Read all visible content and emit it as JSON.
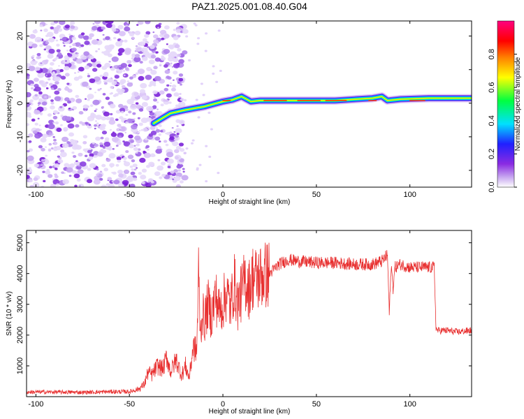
{
  "title": "PAZ1.2025.001.08.40.G04",
  "chart_data": [
    {
      "type": "heatmap",
      "xlabel": "Height of straight line (km)",
      "ylabel": "Frequency (Hz)",
      "xlim": [
        -105,
        133
      ],
      "ylim": [
        -25,
        24.5
      ],
      "xticks": [
        "-100",
        "-50",
        "0",
        "50",
        "100"
      ],
      "yticks": [
        "-20",
        "-10",
        "0",
        "10",
        "20"
      ],
      "colorbar": {
        "label": "Normalized spectral amplitude",
        "range": [
          0,
          1
        ],
        "ticks": [
          "0.0",
          "0.2",
          "0.4",
          "0.6",
          "0.8"
        ],
        "colors": [
          "#ffffff",
          "#c8a8f0",
          "#8a2be2",
          "#2020ff",
          "#00e0ff",
          "#00ff40",
          "#ffff00",
          "#ff8000",
          "#ff0000",
          "#ff0080"
        ]
      },
      "ridge": {
        "description_points_x": [
          -37,
          -28,
          -20,
          -10,
          0,
          5,
          10,
          15,
          20,
          40,
          60,
          80,
          85,
          88,
          95,
          110,
          133
        ],
        "description_points_y": [
          -6,
          -3,
          -2,
          -1,
          0.5,
          1,
          2,
          0.5,
          0.8,
          0.8,
          0.8,
          1.5,
          2,
          0.8,
          1.2,
          1.5,
          1.5
        ]
      }
    },
    {
      "type": "line",
      "xlabel": "Height of straight line (km)",
      "ylabel": "SNR (10 * v/v)",
      "xlim": [
        -105,
        133
      ],
      "ylim": [
        0,
        5400
      ],
      "xticks": [
        "-100",
        "-50",
        "0",
        "50",
        "100"
      ],
      "yticks": [
        "1000",
        "2000",
        "3000",
        "4000",
        "5000"
      ],
      "color": "#e83030",
      "series": [
        {
          "x": [
            -105,
            -90,
            -75,
            -60,
            -50,
            -45,
            -42,
            -40,
            -38,
            -35,
            -32,
            -30,
            -28,
            -25,
            -22,
            -20,
            -18,
            -16,
            -14,
            -13,
            -12,
            -11,
            -10,
            -8,
            -6,
            -4,
            -2,
            0,
            2,
            4,
            6,
            8,
            10,
            12,
            14,
            16,
            18,
            20,
            25,
            30,
            35,
            40,
            50,
            60,
            70,
            80,
            85,
            88,
            89,
            90,
            91,
            92,
            95,
            100,
            110,
            113,
            114,
            115,
            120,
            125,
            133
          ],
          "y": [
            150,
            150,
            140,
            160,
            160,
            250,
            400,
            800,
            700,
            1000,
            900,
            1300,
            800,
            1200,
            700,
            1000,
            600,
            1600,
            1500,
            4000,
            2000,
            2800,
            2400,
            3000,
            2600,
            3300,
            2800,
            3000,
            3400,
            2900,
            3700,
            3000,
            3400,
            3800,
            3500,
            3900,
            3800,
            3900,
            4000,
            4300,
            4450,
            4400,
            4350,
            4350,
            4300,
            4300,
            4400,
            4600,
            2700,
            4300,
            3500,
            4200,
            4300,
            4200,
            4200,
            4200,
            2200,
            2150,
            2150,
            2100,
            2150
          ]
        }
      ]
    }
  ]
}
